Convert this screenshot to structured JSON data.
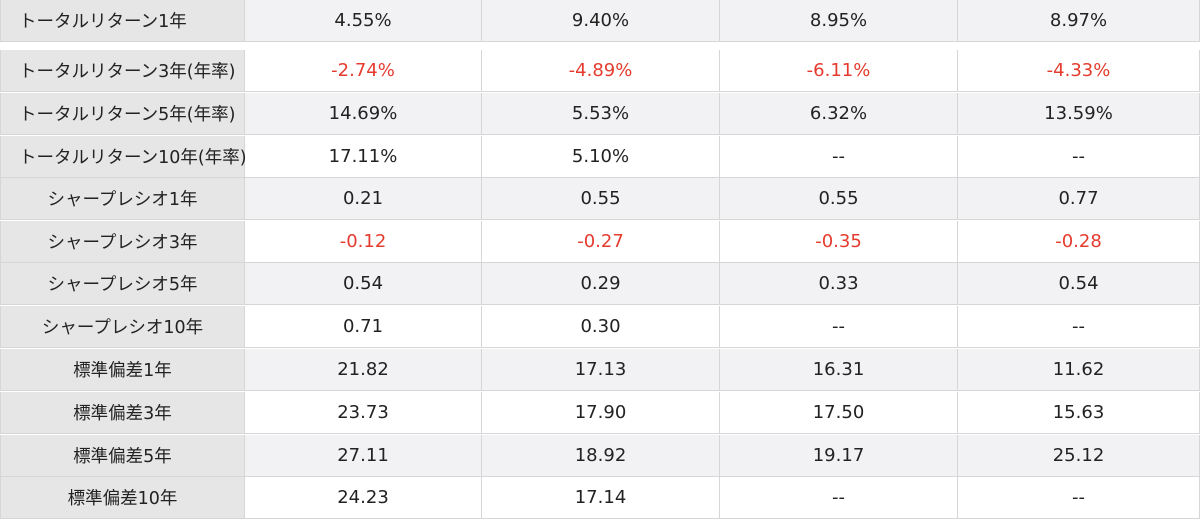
{
  "table": {
    "rows": [
      {
        "label": "トータルリターン1年",
        "values": [
          "4.55%",
          "9.40%",
          "8.95%",
          "8.97%"
        ],
        "negative": false
      },
      {
        "label": "トータルリターン3年(年率)",
        "values": [
          "-2.74%",
          "-4.89%",
          "-6.11%",
          "-4.33%"
        ],
        "negative": true
      },
      {
        "label": "トータルリターン5年(年率)",
        "values": [
          "14.69%",
          "5.53%",
          "6.32%",
          "13.59%"
        ],
        "negative": false
      },
      {
        "label": "トータルリターン10年(年率)",
        "values": [
          "17.11%",
          "5.10%",
          "--",
          "--"
        ],
        "negative": false
      },
      {
        "label": "シャープレシオ1年",
        "values": [
          "0.21",
          "0.55",
          "0.55",
          "0.77"
        ],
        "negative": false
      },
      {
        "label": "シャープレシオ3年",
        "values": [
          "-0.12",
          "-0.27",
          "-0.35",
          "-0.28"
        ],
        "negative": true
      },
      {
        "label": "シャープレシオ5年",
        "values": [
          "0.54",
          "0.29",
          "0.33",
          "0.54"
        ],
        "negative": false
      },
      {
        "label": "シャープレシオ10年",
        "values": [
          "0.71",
          "0.30",
          "--",
          "--"
        ],
        "negative": false
      },
      {
        "label": "標準偏差1年",
        "values": [
          "21.82",
          "17.13",
          "16.31",
          "11.62"
        ],
        "negative": false
      },
      {
        "label": "標準偏差3年",
        "values": [
          "23.73",
          "17.90",
          "17.50",
          "15.63"
        ],
        "negative": false
      },
      {
        "label": "標準偏差5年",
        "values": [
          "27.11",
          "18.92",
          "19.17",
          "25.12"
        ],
        "negative": false
      },
      {
        "label": "標準偏差10年",
        "values": [
          "24.23",
          "17.14",
          "--",
          "--"
        ],
        "negative": false
      }
    ]
  },
  "colors": {
    "negative_text": "#e53b2f",
    "label_background": "#e6e6e6",
    "alt_row_background": "#f2f2f4"
  }
}
